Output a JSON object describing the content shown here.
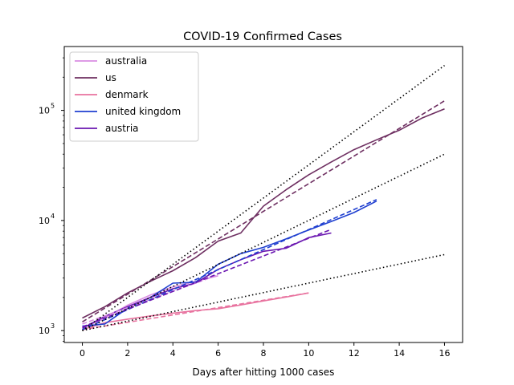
{
  "chart_data": {
    "type": "line",
    "title": "COVID-19 Confirmed Cases",
    "xlabel": "Days after hitting 1000 cases",
    "ylabel": "",
    "xlim": [
      -0.8,
      16.8
    ],
    "ylim": [
      780,
      380000
    ],
    "yscale": "log",
    "xticks": [
      0,
      2,
      4,
      6,
      8,
      10,
      12,
      14,
      16
    ],
    "yticks": [
      {
        "value": 1000,
        "base": "10",
        "exp": "3"
      },
      {
        "value": 10000,
        "base": "10",
        "exp": "4"
      },
      {
        "value": 100000,
        "base": "10",
        "exp": "5"
      }
    ],
    "grid": false,
    "legend_position": "top-left",
    "series": [
      {
        "name": "australia",
        "color": "#d98de3",
        "style": "solid",
        "x": [
          0,
          1,
          2,
          3,
          4,
          5,
          6
        ],
        "y": [
          1050,
          1300,
          1700,
          2100,
          2500,
          2800,
          3150
        ]
      },
      {
        "name": "us",
        "color": "#6e2f61",
        "style": "solid",
        "x": [
          0,
          1,
          2,
          3,
          4,
          5,
          6,
          7,
          8,
          9,
          10,
          11,
          12,
          13,
          14,
          15,
          16
        ],
        "y": [
          1300,
          1650,
          2200,
          2800,
          3500,
          4600,
          6500,
          7700,
          13500,
          19000,
          26000,
          34000,
          44000,
          54000,
          66000,
          85000,
          103000
        ]
      },
      {
        "name": "denmark",
        "color": "#e8739f",
        "style": "solid",
        "x": [
          0,
          1,
          2,
          3,
          4,
          5,
          6,
          7,
          8,
          9,
          10
        ],
        "y": [
          1020,
          1180,
          1270,
          1360,
          1440,
          1520,
          1580,
          1710,
          1860,
          2020,
          2200
        ]
      },
      {
        "name": "united kingdom",
        "color": "#1f3fd0",
        "style": "solid",
        "x": [
          0,
          1,
          2,
          3,
          4,
          5,
          6,
          7,
          8,
          9,
          10,
          11,
          12,
          13
        ],
        "y": [
          1100,
          1150,
          1600,
          2000,
          2700,
          2750,
          4000,
          5000,
          5700,
          6800,
          8200,
          9800,
          11800,
          15000
        ]
      },
      {
        "name": "austria",
        "color": "#6a16b0",
        "style": "solid",
        "x": [
          0,
          1,
          2,
          3,
          4,
          5,
          6,
          7,
          8,
          9,
          10,
          11
        ],
        "y": [
          1050,
          1350,
          1650,
          2000,
          2400,
          2700,
          3600,
          4400,
          5250,
          5600,
          7000,
          7700
        ]
      },
      {
        "color": "#d98de3",
        "style": "dashed",
        "x": [
          0,
          6
        ],
        "y": [
          1150,
          3200
        ]
      },
      {
        "color": "#6e2f61",
        "style": "dashed",
        "x": [
          0,
          16
        ],
        "y": [
          1200,
          122000
        ]
      },
      {
        "color": "#e8739f",
        "style": "dashed",
        "x": [
          0,
          10
        ],
        "y": [
          1020,
          2200
        ]
      },
      {
        "color": "#1f3fd0",
        "style": "dashed",
        "x": [
          0,
          13
        ],
        "y": [
          1020,
          15500
        ]
      },
      {
        "color": "#6a16b0",
        "style": "dashed",
        "x": [
          0,
          11
        ],
        "y": [
          1080,
          8300
        ]
      },
      {
        "color": "#000000",
        "style": "dotted",
        "x": [
          0,
          16
        ],
        "y": [
          1000,
          256000
        ]
      },
      {
        "color": "#000000",
        "style": "dotted",
        "x": [
          0,
          16
        ],
        "y": [
          1000,
          40000
        ]
      },
      {
        "color": "#000000",
        "style": "dotted",
        "x": [
          0,
          16
        ],
        "y": [
          1000,
          4900
        ]
      }
    ]
  }
}
